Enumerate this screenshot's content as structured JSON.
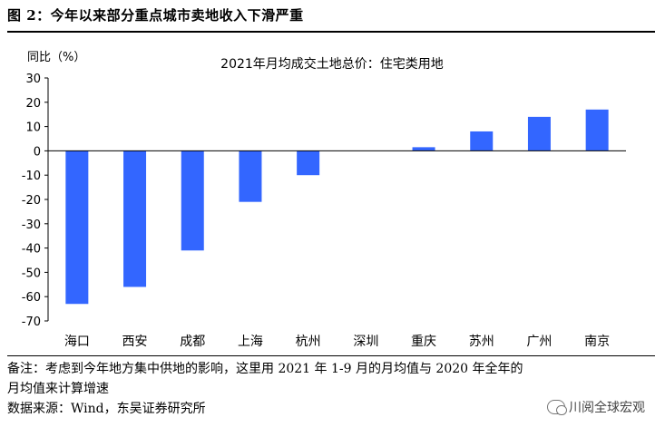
{
  "figure_title": "图 2：今年以来部分重点城市卖地收入下滑严重",
  "chart_data": {
    "type": "bar",
    "title": "2021年月均成交土地总价：住宅类用地",
    "ylabel": "同比（%）",
    "xlabel": "",
    "categories": [
      "海口",
      "西安",
      "成都",
      "上海",
      "杭州",
      "深圳",
      "重庆",
      "苏州",
      "广州",
      "南京"
    ],
    "values": [
      -63,
      -56,
      -41,
      -21,
      -10,
      0,
      1.5,
      8,
      14,
      17
    ],
    "ylim": [
      -70,
      30
    ],
    "yticks": [
      30,
      20,
      10,
      0,
      -10,
      -20,
      -30,
      -40,
      -50,
      -60,
      -70
    ],
    "bar_color": "#3366ff",
    "grid": false,
    "legend": "none"
  },
  "notes": {
    "line1": "备注：考虑到今年地方集中供地的影响，这里用 2021 年 1-9 月的月均值与 2020 年全年的",
    "line2": "月均值来计算增速",
    "source": "数据来源：Wind，东吴证券研究所"
  },
  "watermark": {
    "text": "川阅全球宏观",
    "icon": "wechat-icon"
  }
}
